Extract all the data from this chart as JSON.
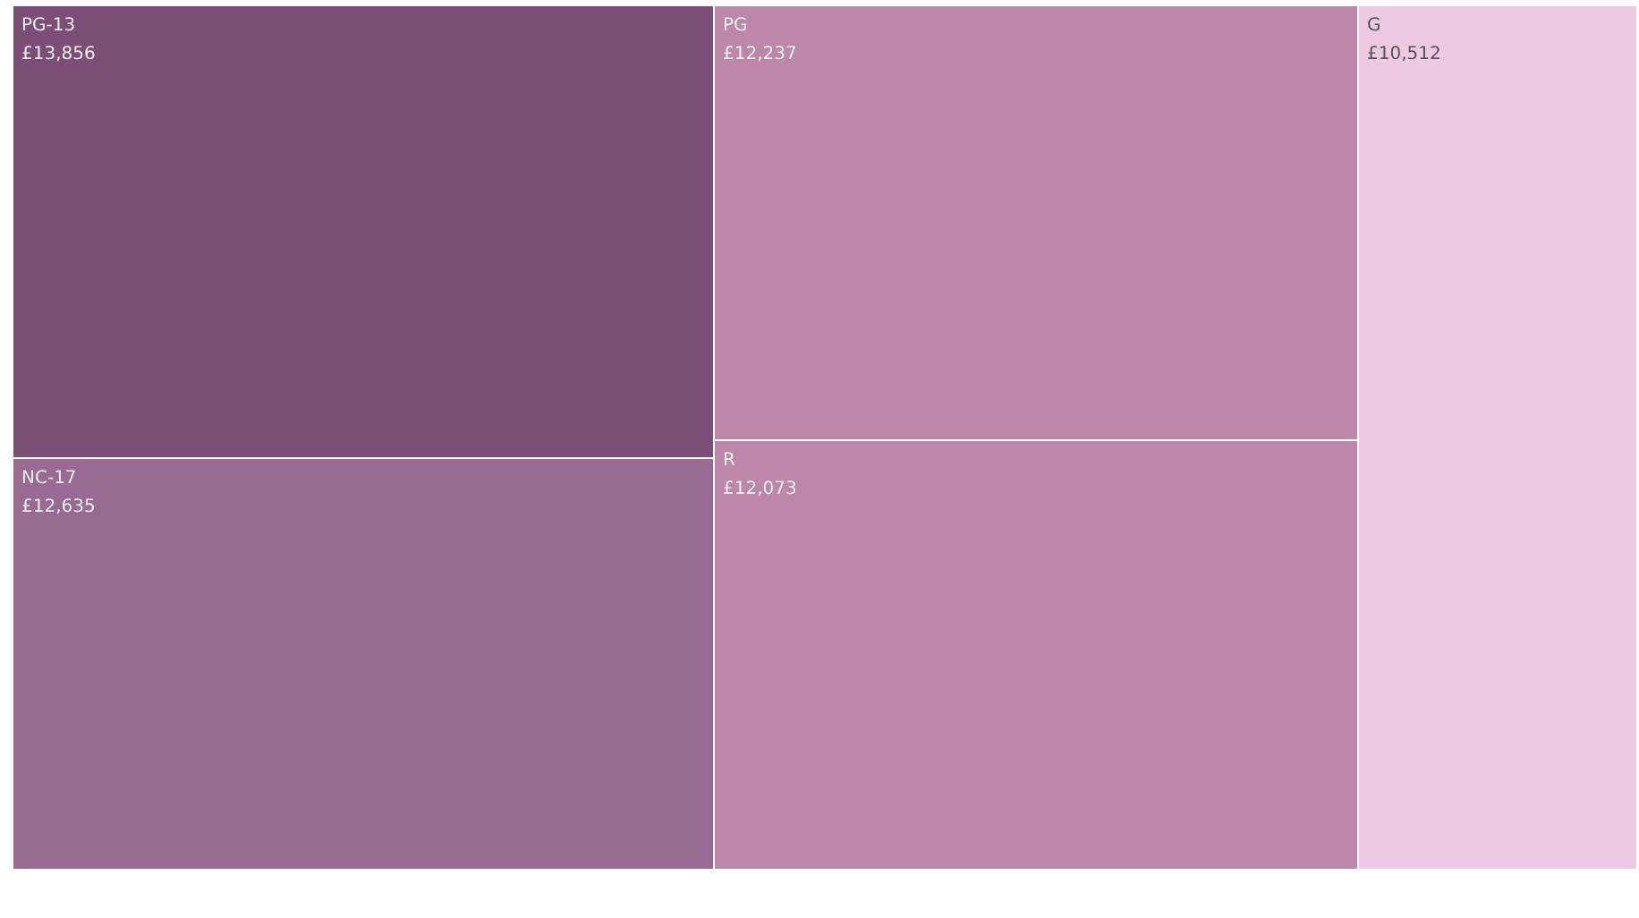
{
  "chart_data": {
    "type": "other",
    "categories": [
      "PG-13",
      "NC-17",
      "PG",
      "R",
      "G"
    ],
    "values": [
      13856,
      12635,
      12237,
      12073,
      10512
    ],
    "value_labels": [
      "£13,856",
      "£12,635",
      "£12,237",
      "£12,073",
      "£10,512"
    ],
    "colors": [
      "#7b4d77",
      "#986a94",
      "#bc87a8",
      "#bc87a8",
      "#edc9e3"
    ],
    "data_labels": true
  }
}
